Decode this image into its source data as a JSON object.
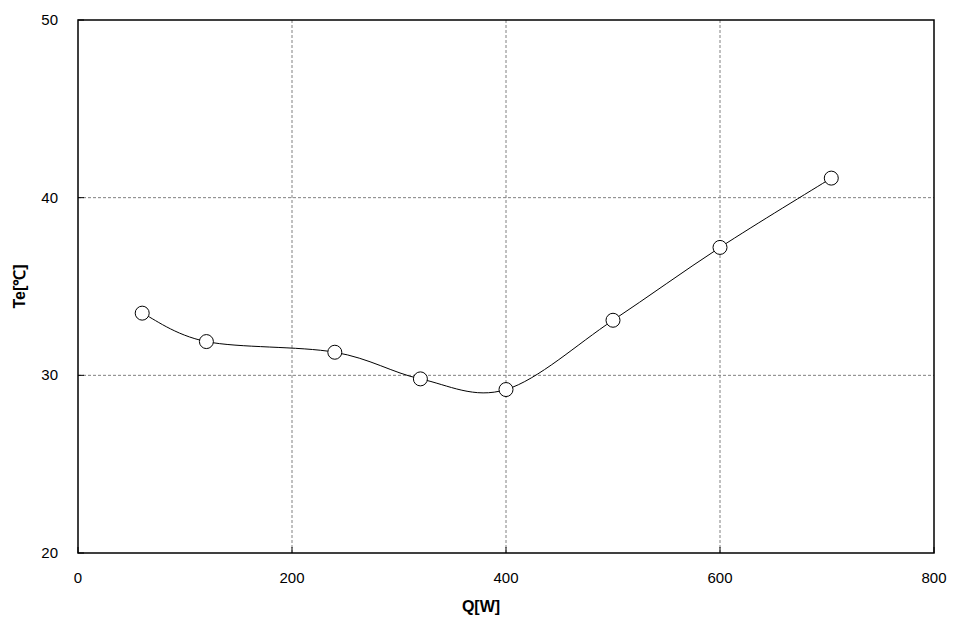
{
  "chart_data": {
    "type": "line",
    "x_label": "Q[W]",
    "y_label": "Te[℃]",
    "x": [
      60,
      120,
      240,
      320,
      400,
      500,
      600,
      704
    ],
    "values": [
      33.5,
      31.9,
      31.3,
      29.8,
      29.2,
      33.1,
      37.2,
      41.1
    ],
    "color": "#000000",
    "marker": "circle",
    "line_style": "solid",
    "xlim": [
      0,
      800
    ],
    "xticks": [
      0,
      200,
      400,
      600,
      800
    ],
    "ylim": [
      20,
      50
    ],
    "yticks": [
      20,
      30,
      40,
      50
    ],
    "grid": true
  }
}
